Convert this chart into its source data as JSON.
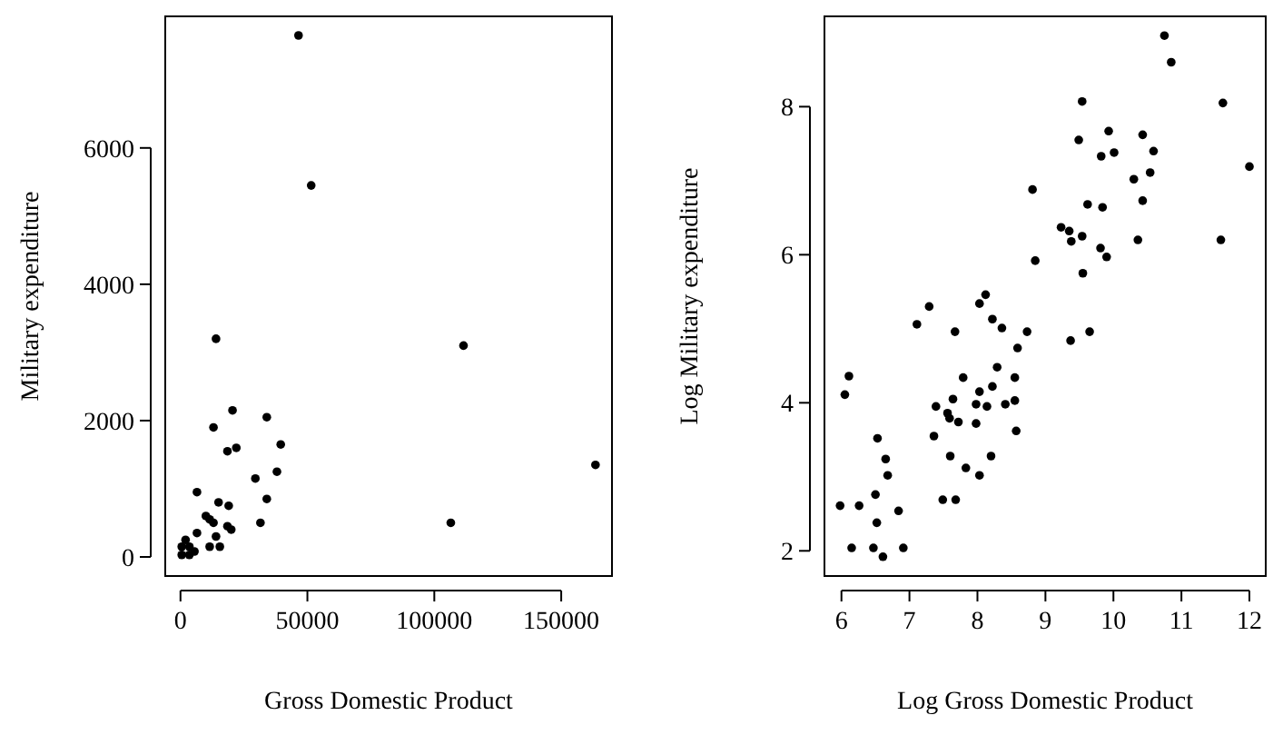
{
  "chart_data": [
    {
      "type": "scatter",
      "xlabel": "Gross Domestic Product",
      "ylabel": "Military expenditure",
      "xlim": [
        -6000,
        170000
      ],
      "ylim": [
        -280,
        7930
      ],
      "xticks": [
        0,
        50000,
        100000,
        150000
      ],
      "yticks": [
        0,
        2000,
        4000,
        6000
      ],
      "grid": false,
      "marker": "circle",
      "series": [
        {
          "color": "#000000",
          "x": [
            46500,
            51500,
            14000,
            111500,
            163500,
            106500,
            20500,
            34000,
            13000,
            39500,
            22000,
            18500,
            38000,
            29500,
            34000,
            6500,
            15000,
            19000,
            31500,
            10000,
            11500,
            13000,
            6500,
            18500,
            20000,
            14000,
            11500,
            15500,
            500,
            3500,
            500,
            3500,
            2000,
            5500
          ],
          "values": [
            7650,
            5450,
            3200,
            3100,
            1350,
            500,
            2150,
            2050,
            1900,
            1650,
            1600,
            1550,
            1250,
            1150,
            850,
            950,
            800,
            750,
            500,
            600,
            550,
            500,
            350,
            450,
            400,
            300,
            150,
            150,
            30,
            30,
            150,
            150,
            250,
            80
          ]
        }
      ]
    },
    {
      "type": "scatter",
      "xlabel": "Log Gross Domestic Product",
      "ylabel": "Log Military expenditure",
      "xlim": [
        5.75,
        12.24
      ],
      "ylim": [
        1.66,
        9.22
      ],
      "xticks": [
        6,
        7,
        8,
        9,
        10,
        11,
        12
      ],
      "yticks": [
        2,
        4,
        6,
        8
      ],
      "grid": false,
      "marker": "circle",
      "series": [
        {
          "color": "#000000",
          "x": [
            10.75,
            10.85,
            9.54,
            11.61,
            9.93,
            9.49,
            10.43,
            10.01,
            9.82,
            10.59,
            12.0,
            10.54,
            10.3,
            8.81,
            9.62,
            9.84,
            10.43,
            9.23,
            9.35,
            9.38,
            9.54,
            10.36,
            11.58,
            9.81,
            9.9,
            8.85,
            9.55,
            8.12,
            8.03,
            7.29,
            7.11,
            8.22,
            8.36,
            8.73,
            7.67,
            9.65,
            9.37,
            8.59,
            8.29,
            8.55,
            7.79,
            6.11,
            6.05,
            8.03,
            8.22,
            7.64,
            8.55,
            7.39,
            7.98,
            8.14,
            8.41,
            7.56,
            7.59,
            7.72,
            7.98,
            7.36,
            8.57,
            6.53,
            7.6,
            8.2,
            6.65,
            6.68,
            7.83,
            8.03,
            5.98,
            6.26,
            6.5,
            6.84,
            7.49,
            7.68,
            6.52,
            6.15,
            6.47,
            6.91,
            6.61
          ],
          "values": [
            8.96,
            8.6,
            8.07,
            8.05,
            7.67,
            7.55,
            7.62,
            7.38,
            7.33,
            7.4,
            7.19,
            7.11,
            7.02,
            6.88,
            6.68,
            6.64,
            6.73,
            6.37,
            6.32,
            6.18,
            6.25,
            6.2,
            6.2,
            6.09,
            5.97,
            5.92,
            5.75,
            5.46,
            5.34,
            5.3,
            5.06,
            5.13,
            5.01,
            4.96,
            4.96,
            4.96,
            4.84,
            4.74,
            4.48,
            4.34,
            4.34,
            4.36,
            4.11,
            4.15,
            4.22,
            4.05,
            4.03,
            3.95,
            3.98,
            3.95,
            3.98,
            3.86,
            3.79,
            3.74,
            3.72,
            3.55,
            3.62,
            3.52,
            3.28,
            3.28,
            3.24,
            3.02,
            3.12,
            3.02,
            2.61,
            2.61,
            2.76,
            2.54,
            2.69,
            2.69,
            2.38,
            2.04,
            2.04,
            2.04,
            1.92
          ]
        }
      ]
    }
  ]
}
